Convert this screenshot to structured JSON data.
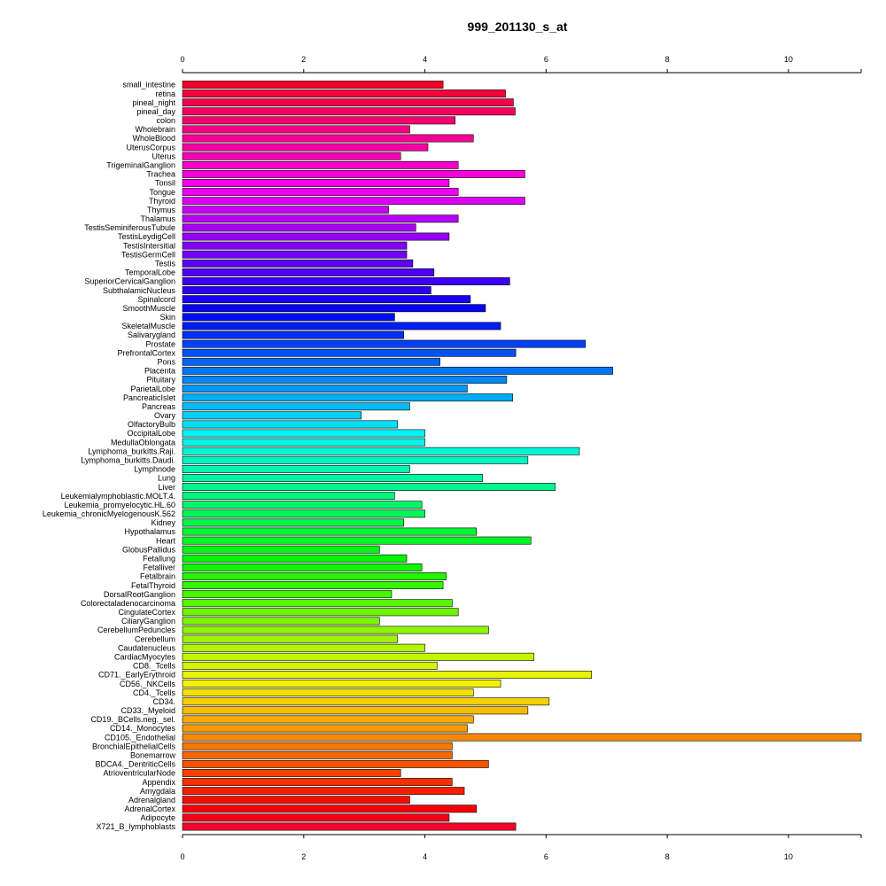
{
  "chart_data": {
    "type": "bar",
    "orientation": "horizontal",
    "title": "999_201130_s_at",
    "xlabel": "",
    "ylabel": "",
    "xlim": [
      0,
      11.2
    ],
    "xticks": [
      0,
      2,
      4,
      6,
      8,
      10
    ],
    "axes": [
      "top",
      "bottom"
    ],
    "grid": false,
    "legend": "none",
    "color_scheme": "rainbow",
    "categories": [
      "small_intestine",
      "retina",
      "pineal_night",
      "pineal_day",
      "colon",
      "Wholebrain",
      "WholeBlood",
      "UterusCorpus",
      "Uterus",
      "TrigeminalGanglion",
      "Trachea",
      "Tonsil",
      "Tongue",
      "Thyroid",
      "Thymus",
      "Thalamus",
      "TestisSeminiferousTubule",
      "TestisLeydigCell",
      "TestisIntersitial",
      "TestisGermCell",
      "Testis",
      "TemporalLobe",
      "SuperiorCervicalGanglion",
      "SubthalamicNucleus",
      "Spinalcord",
      "SmoothMuscle",
      "Skin",
      "SkeletalMuscle",
      "Salivarygland",
      "Prostate",
      "PrefrontalCortex",
      "Pons",
      "Placenta",
      "Pituitary",
      "ParietalLobe",
      "PancreaticIslet",
      "Pancreas",
      "Ovary",
      "OlfactoryBulb",
      "OccipitalLobe",
      "MedullaOblongata",
      "Lymphoma_burkitts.Raji.",
      "Lymphoma_burkitts.Daudi.",
      "Lymphnode",
      "Lung",
      "Liver",
      "Leukemialymphoblastic.MOLT.4.",
      "Leukemia_promyelocytic.HL.60",
      "Leukemia_chronicMyelogenousK.562",
      "Kidney",
      "Hypothalamus",
      "Heart",
      "GlobusPallidus",
      "Fetallung",
      "Fetalliver",
      "Fetalbrain",
      "FetalThyroid",
      "DorsalRootGanglion",
      "Colorectaladenocarcinoma",
      "CingulateCortex",
      "CiliaryGanglion",
      "CerebellumPeduncles",
      "Cerebellum",
      "Caudatenucleus",
      "CardiacMyocytes",
      "CD8._Tcells",
      "CD71._EarlyErythroid",
      "CD56._NKCells",
      "CD4._Tcells",
      "CD34.",
      "CD33._Myeloid",
      "CD19._BCells.neg._sel.",
      "CD14._Monocytes",
      "CD105._Endothelial",
      "BronchialEpithelialCells",
      "Bonemarrow",
      "BDCA4._DentriticCells",
      "AtrioventricularNode",
      "Appendix",
      "Amygdala",
      "Adrenalgland",
      "AdrenalCortex",
      "Adipocyte",
      "X721_B_lymphoblasts"
    ],
    "values": [
      4.3,
      5.33,
      5.46,
      5.49,
      4.5,
      3.75,
      4.8,
      4.05,
      3.6,
      4.55,
      5.65,
      4.4,
      4.55,
      5.65,
      3.4,
      4.55,
      3.85,
      4.4,
      3.7,
      3.7,
      3.8,
      4.15,
      5.4,
      4.1,
      4.75,
      5.0,
      3.5,
      5.25,
      3.65,
      6.65,
      5.5,
      4.25,
      7.1,
      5.35,
      4.7,
      5.45,
      3.75,
      2.95,
      3.55,
      4.0,
      4.0,
      6.55,
      5.7,
      3.75,
      4.95,
      6.15,
      3.5,
      3.95,
      4.0,
      3.65,
      4.85,
      5.75,
      3.25,
      3.7,
      3.95,
      4.35,
      4.3,
      3.45,
      4.45,
      4.55,
      3.25,
      5.05,
      3.55,
      4.0,
      5.8,
      4.2,
      6.75,
      5.25,
      4.8,
      6.05,
      5.7,
      4.8,
      4.7,
      11.2,
      4.45,
      4.45,
      5.05,
      3.6,
      4.45,
      4.65,
      3.75,
      4.85,
      4.4,
      5.5
    ]
  }
}
